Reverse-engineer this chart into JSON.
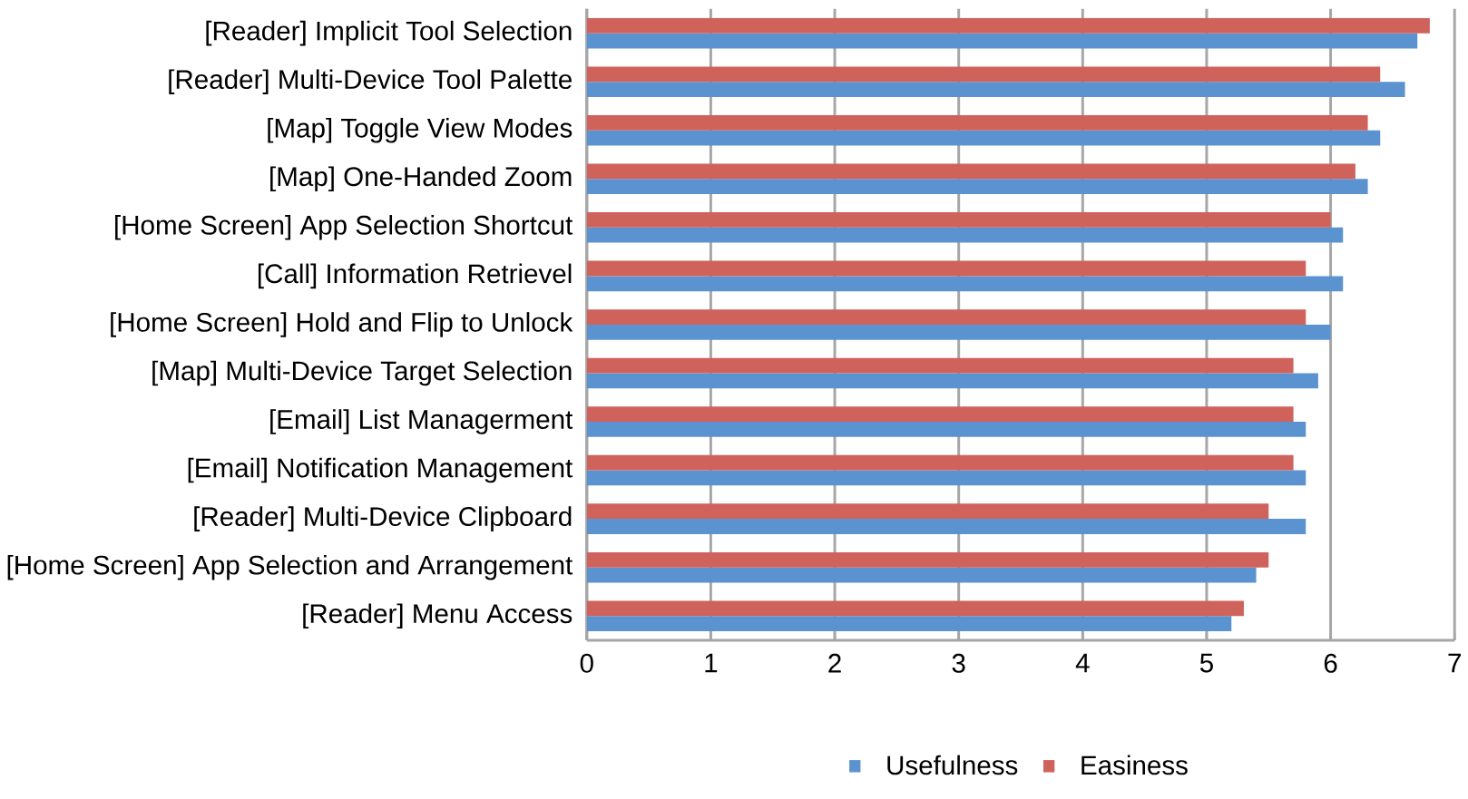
{
  "chart_data": {
    "type": "bar",
    "orientation": "horizontal",
    "categories": [
      "[Reader] Implicit Tool Selection",
      "[Reader] Multi-Device Tool Palette",
      "[Map] Toggle View Modes",
      "[Map] One-Handed Zoom",
      "[Home Screen] App Selection Shortcut",
      "[Call] Information Retrievel",
      "[Home Screen] Hold and Flip to Unlock",
      "[Map] Multi-Device Target Selection",
      "[Email] List Managerment",
      "[Email] Notification Management",
      "[Reader] Multi-Device Clipboard",
      "[Home Screen] App Selection and Arrangement",
      "[Reader] Menu Access"
    ],
    "series": [
      {
        "name": "Usefulness",
        "color": "#5b93d0",
        "values": [
          6.7,
          6.6,
          6.4,
          6.3,
          6.1,
          6.1,
          6.0,
          5.9,
          5.8,
          5.8,
          5.8,
          5.4,
          5.2
        ]
      },
      {
        "name": "Easiness",
        "color": "#d0625c",
        "values": [
          6.8,
          6.4,
          6.3,
          6.2,
          6.0,
          5.8,
          5.8,
          5.7,
          5.7,
          5.7,
          5.5,
          5.5,
          5.3
        ]
      }
    ],
    "xlim": [
      0,
      7
    ],
    "xticks": [
      0,
      1,
      2,
      3,
      4,
      5,
      6,
      7
    ],
    "grid": "x",
    "legend": "bottom"
  }
}
